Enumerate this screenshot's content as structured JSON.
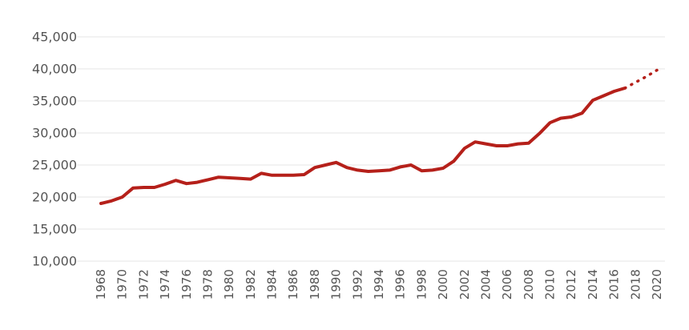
{
  "chart_data": {
    "type": "line",
    "title": "",
    "xlabel": "",
    "ylabel": "",
    "xlim": [
      1968,
      2020
    ],
    "ylim": [
      10000,
      45000
    ],
    "grid": true,
    "x_tick_labels": [
      "1968",
      "1970",
      "1972",
      "1974",
      "1976",
      "1978",
      "1980",
      "1982",
      "1984",
      "1986",
      "1988",
      "1990",
      "1992",
      "1994",
      "1996",
      "1998",
      "2000",
      "2002",
      "2004",
      "2006",
      "2008",
      "2010",
      "2012",
      "2014",
      "2016",
      "2018",
      "2020"
    ],
    "y_tick_labels": [
      "10,000",
      "15,000",
      "20,000",
      "25,000",
      "30,000",
      "35,000",
      "40,000",
      "45,000"
    ],
    "series": [
      {
        "style": "solid",
        "color": "#b5201a",
        "x": [
          1968,
          1969,
          1970,
          1971,
          1972,
          1973,
          1974,
          1975,
          1976,
          1977,
          1978,
          1979,
          1980,
          1981,
          1982,
          1983,
          1984,
          1985,
          1986,
          1987,
          1988,
          1989,
          1990,
          1991,
          1992,
          1993,
          1994,
          1995,
          1996,
          1997,
          1998,
          1999,
          2000,
          2001,
          2002,
          2003,
          2004,
          2005,
          2006,
          2007,
          2008,
          2009,
          2010,
          2011,
          2012,
          2013,
          2014,
          2015,
          2016,
          2017
        ],
        "y": [
          19000,
          19400,
          20000,
          21400,
          21500,
          21500,
          22000,
          22600,
          22100,
          22300,
          22700,
          23100,
          23000,
          22900,
          22800,
          23700,
          23400,
          23400,
          23400,
          23500,
          24600,
          25000,
          25400,
          24600,
          24200,
          24000,
          24100,
          24200,
          24700,
          25000,
          24100,
          24200,
          24500,
          25600,
          27600,
          28600,
          28300,
          28000,
          28000,
          28300,
          28400,
          29900,
          31600,
          32300,
          32500,
          33100,
          35100,
          35800,
          36500,
          37000
        ]
      },
      {
        "style": "dotted",
        "color": "#b5201a",
        "x": [
          2017,
          2018,
          2019,
          2020
        ],
        "y": [
          37000,
          37900,
          38800,
          39800
        ]
      }
    ]
  }
}
